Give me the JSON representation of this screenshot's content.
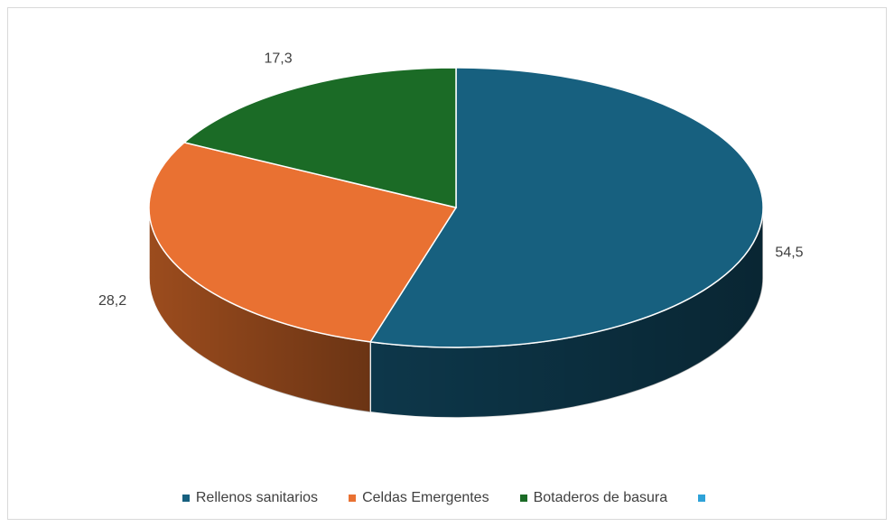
{
  "chart_data": {
    "type": "pie",
    "title": "",
    "series": [
      {
        "name": "",
        "values": [
          54.5,
          28.2,
          17.3,
          0
        ]
      }
    ],
    "categories": [
      "Rellenos sanitarios",
      "Celdas Emergentes",
      "Botaderos de basura",
      ""
    ],
    "data_labels": [
      "54,5",
      "28,2",
      "17,3",
      ""
    ],
    "colors": [
      "#17607f",
      "#e97132",
      "#1b6b26",
      "#2ea2d8"
    ],
    "side_colors": [
      "#0e3a4e",
      "#a4501f",
      "#104818",
      "#1d7aa5"
    ],
    "style": "3d",
    "legend_position": "bottom"
  }
}
